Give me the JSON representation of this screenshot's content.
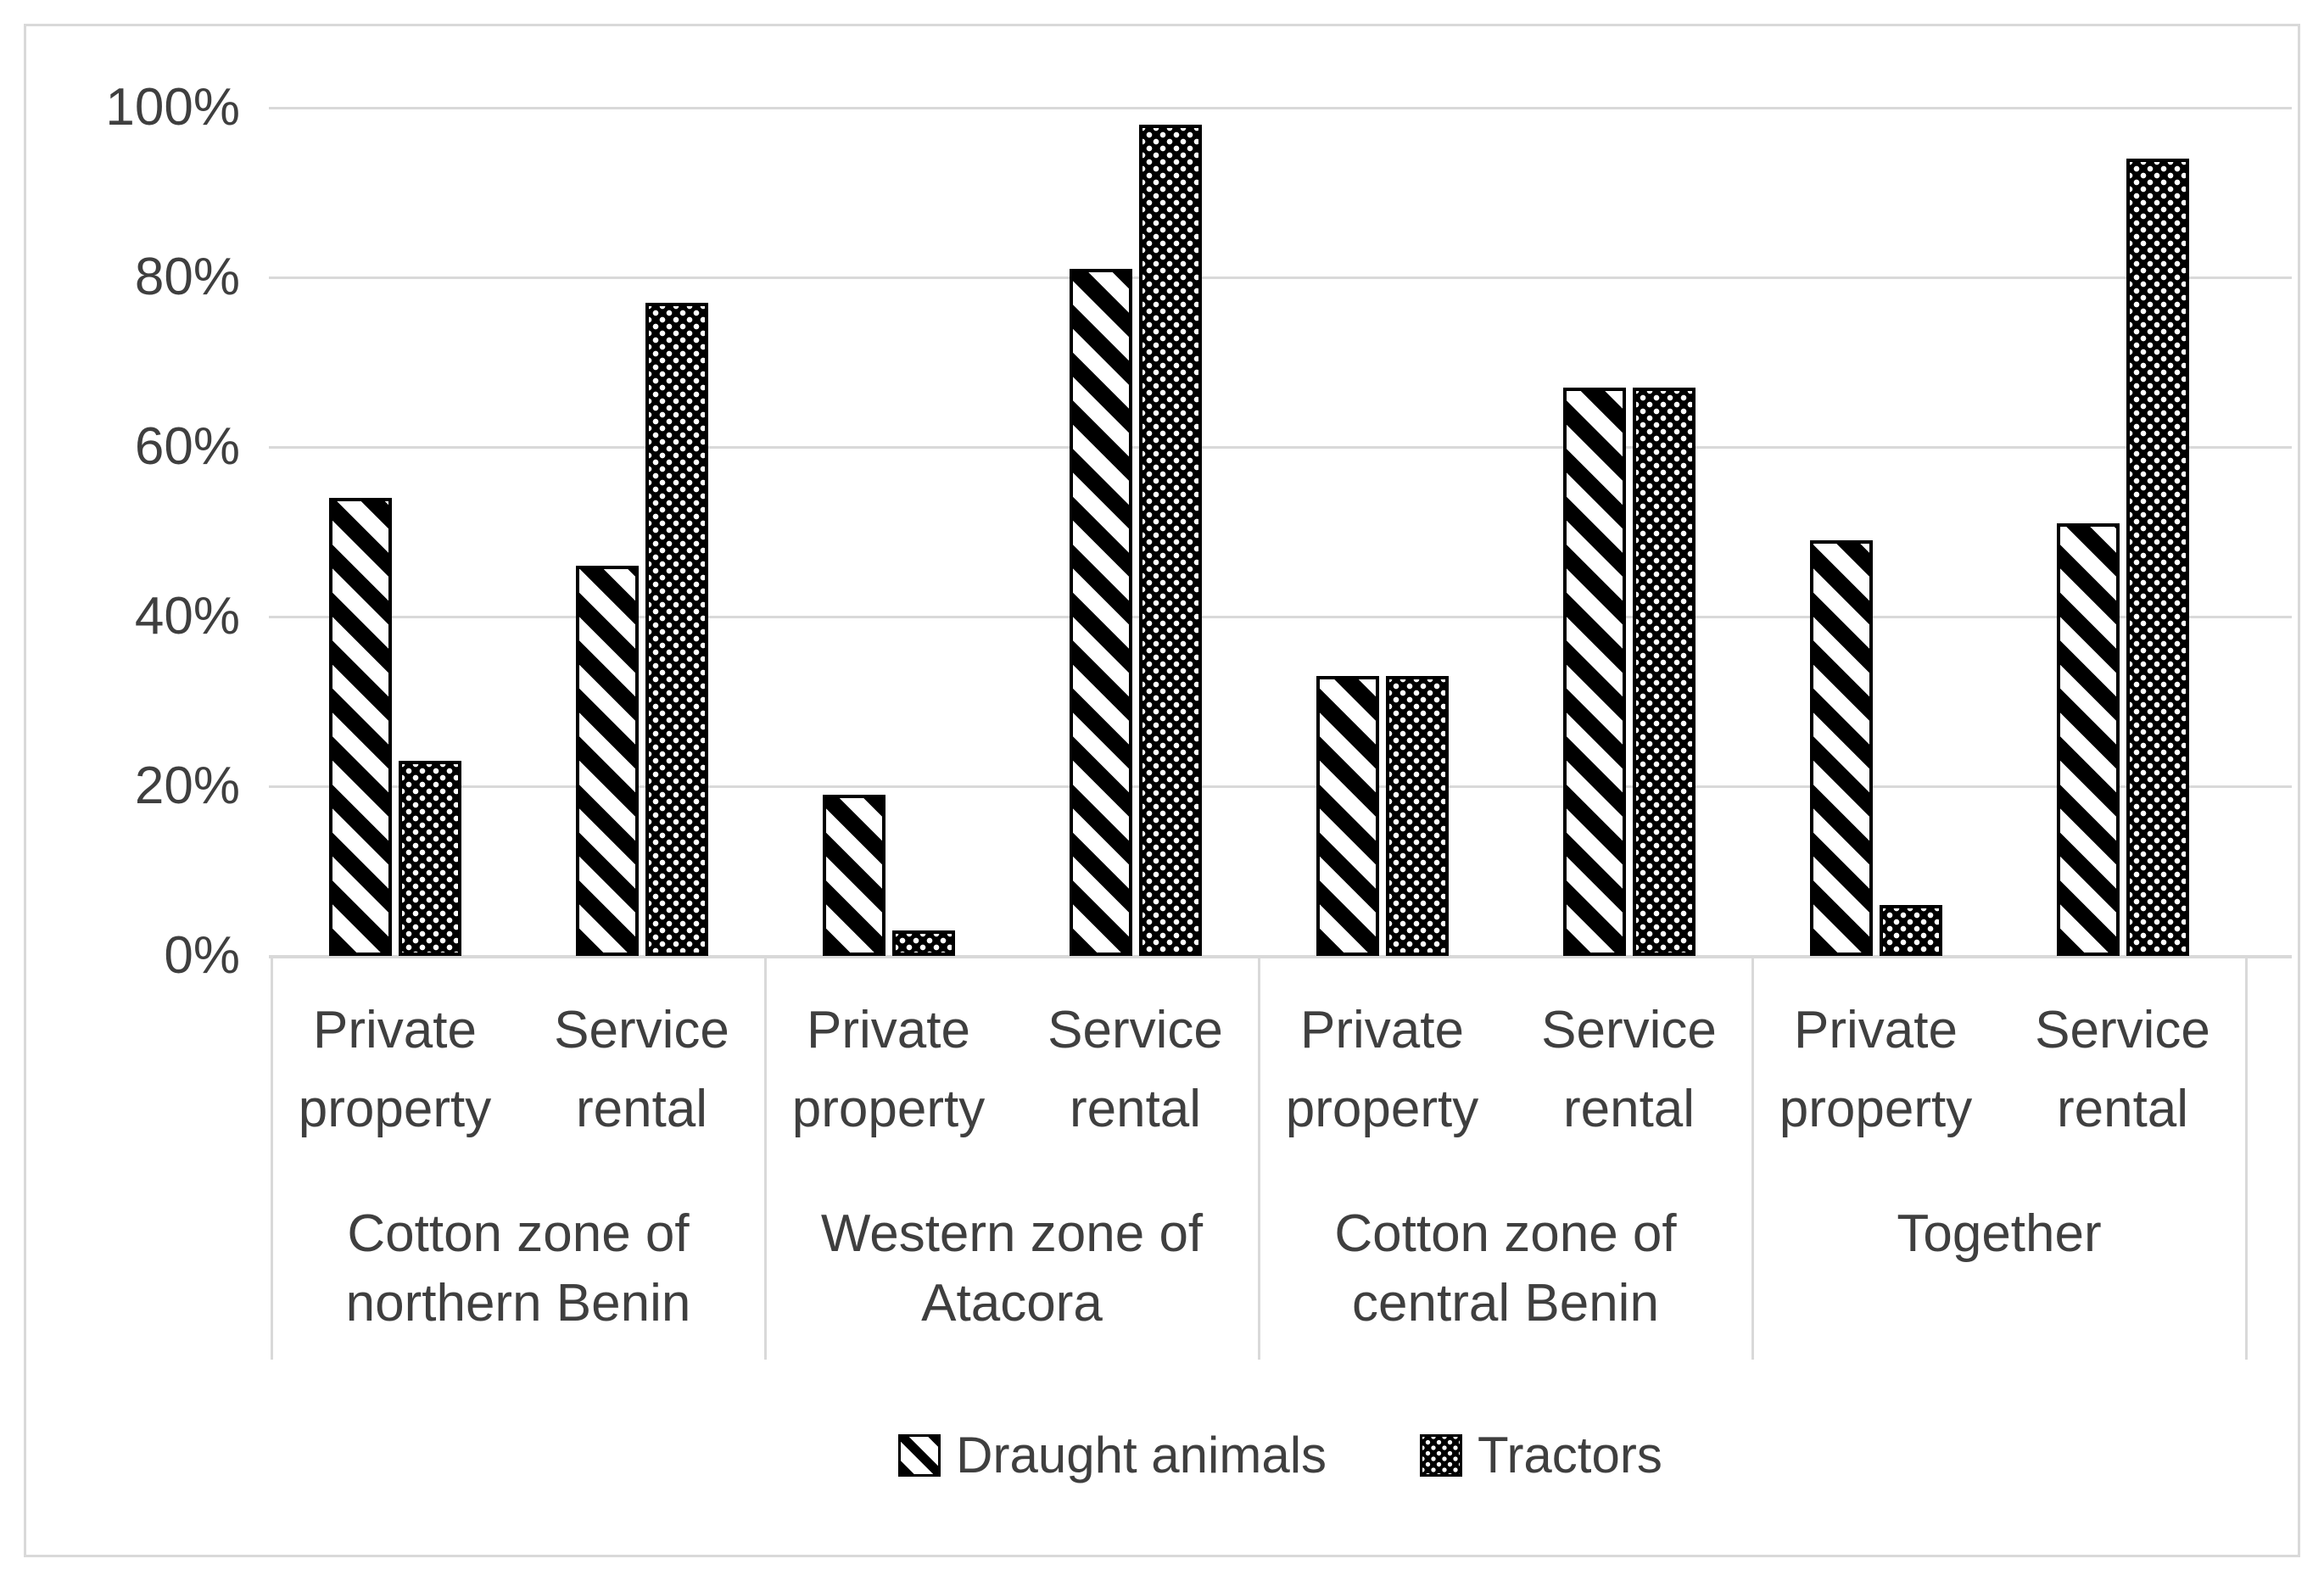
{
  "chart_data": {
    "type": "bar",
    "title": "",
    "xlabel": "",
    "ylabel": "",
    "ylim": [
      0,
      100
    ],
    "grid": true,
    "legend_position": "bottom",
    "yticks": [
      {
        "label": "0%",
        "value": 0
      },
      {
        "label": "20%",
        "value": 20
      },
      {
        "label": "40%",
        "value": 40
      },
      {
        "label": "60%",
        "value": 60
      },
      {
        "label": "80%",
        "value": 80
      },
      {
        "label": "100%",
        "value": 100
      }
    ],
    "series": [
      {
        "name": "Draught animals",
        "pattern": "diagonal-stripes",
        "color": "#000000"
      },
      {
        "name": "Tractors",
        "pattern": "dots",
        "color": "#000000"
      }
    ],
    "groups": [
      {
        "zone_label_lines": [
          "Cotton zone of",
          "northern Benin"
        ],
        "subcategories": [
          {
            "label_lines": [
              "Private",
              "property"
            ],
            "values": [
              54,
              23
            ]
          },
          {
            "label_lines": [
              "Service",
              "rental"
            ],
            "values": [
              46,
              77
            ]
          }
        ]
      },
      {
        "zone_label_lines": [
          "Western zone of",
          "Atacora"
        ],
        "subcategories": [
          {
            "label_lines": [
              "Private",
              "property"
            ],
            "values": [
              19,
              3
            ]
          },
          {
            "label_lines": [
              "Service",
              "rental"
            ],
            "values": [
              81,
              98
            ]
          }
        ]
      },
      {
        "zone_label_lines": [
          "Cotton zone of",
          "central Benin"
        ],
        "subcategories": [
          {
            "label_lines": [
              "Private",
              "property"
            ],
            "values": [
              33,
              33
            ]
          },
          {
            "label_lines": [
              "Service",
              "rental"
            ],
            "values": [
              67,
              67
            ]
          }
        ]
      },
      {
        "zone_label_lines": [
          "Together"
        ],
        "subcategories": [
          {
            "label_lines": [
              "Private",
              "property"
            ],
            "values": [
              49,
              6
            ]
          },
          {
            "label_lines": [
              "Service",
              "rental"
            ],
            "values": [
              51,
              94
            ]
          }
        ]
      }
    ],
    "colors": {
      "background": "#ffffff",
      "grid": "#d9d9d9",
      "text": "#3f3f3f",
      "bars": "#000000"
    }
  }
}
